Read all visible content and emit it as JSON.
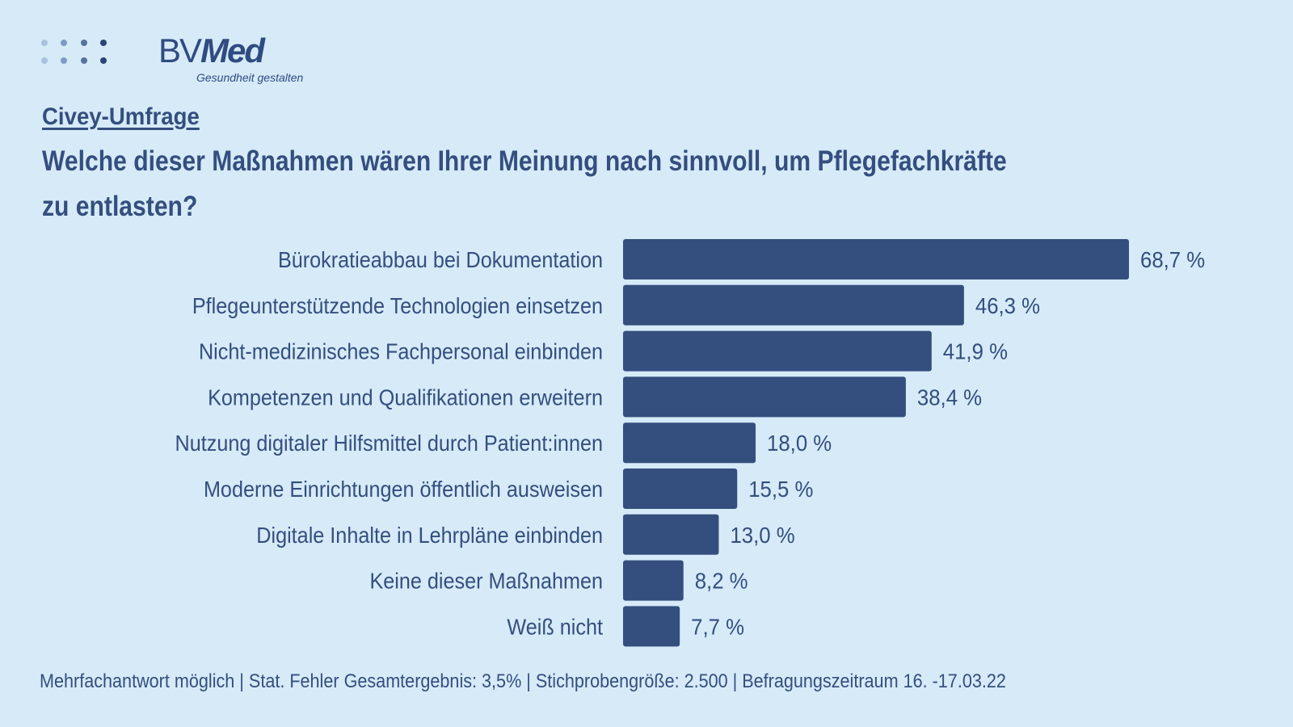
{
  "logo": {
    "brand_regular": "BV",
    "brand_bold": "Med",
    "tagline": "Gesundheit gestalten",
    "dot_colors": [
      "#a9c1da",
      "#7f9bc0",
      "#56729f",
      "#2a4478"
    ]
  },
  "survey_label": "Civey-Umfrage",
  "question": {
    "line1": "Welche dieser Maßnahmen wären Ihrer Meinung nach sinnvoll, um Pflegefachkräfte",
    "line2": "zu entlasten?"
  },
  "colors": {
    "background": "#d6eaf8",
    "bar": "#344f7e",
    "text": "#344f7e"
  },
  "chart_data": {
    "type": "bar",
    "orientation": "horizontal",
    "title": "Welche dieser Maßnahmen wären Ihrer Meinung nach sinnvoll, um Pflegefachkräfte zu entlasten?",
    "xlabel": "",
    "ylabel": "",
    "unit": "%",
    "xlim": [
      0,
      70
    ],
    "grid": false,
    "categories": [
      "Bürokratieabbau bei Dokumentation",
      "Pflegeunterstützende Technologien einsetzen",
      "Nicht-medizinisches Fachpersonal einbinden",
      "Kompetenzen und Qualifikationen erweitern",
      "Nutzung digitaler Hilfsmittel durch Patient:innen",
      "Moderne Einrichtungen öffentlich ausweisen",
      "Digitale Inhalte in Lehrpläne einbinden",
      "Keine dieser Maßnahmen",
      "Weiß nicht"
    ],
    "values": [
      68.7,
      46.3,
      41.9,
      38.4,
      18.0,
      15.5,
      13.0,
      8.2,
      7.7
    ],
    "value_labels": [
      "68,7 %",
      "46,3 %",
      "41,9 %",
      "38,4 %",
      "18,0 %",
      "15,5 %",
      "13,0 %",
      "8,2 %",
      "7,7 %"
    ]
  },
  "footer": "Mehrfachantwort möglich | Stat. Fehler Gesamtergebnis: 3,5% | Stichprobengröße: 2.500 | Befragungszeitraum 16. -17.03.22"
}
